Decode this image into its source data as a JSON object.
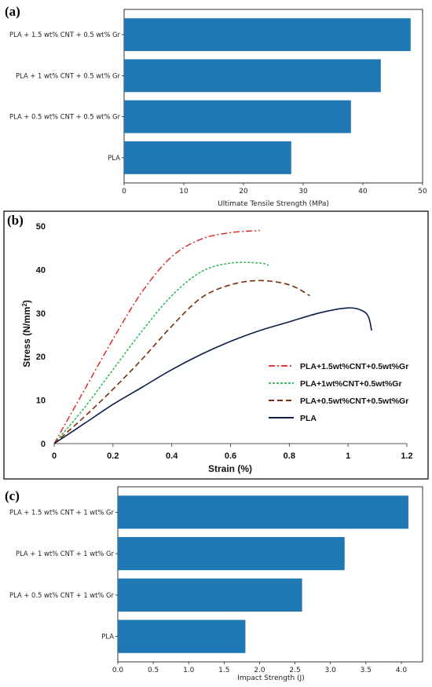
{
  "panels": {
    "a": "(a)",
    "b": "(b)",
    "c": "(c)"
  },
  "colors": {
    "bar": "#1f77b4",
    "pla15": "#e02020",
    "pla1": "#22b14c",
    "pla05": "#7a2d0c",
    "pla": "#0b1e4a"
  },
  "chart_data": [
    {
      "type": "bar",
      "orientation": "horizontal",
      "categories": [
        "PLA + 1.5 wt% CNT + 0.5 wt% Gr",
        "PLA + 1 wt% CNT + 0.5 wt% Gr",
        "PLA + 0.5 wt% CNT + 0.5 wt% Gr",
        "PLA"
      ],
      "values": [
        48,
        43,
        38,
        28
      ],
      "xlabel": "Ultimate Tensile Strength (MPa)",
      "xlim": [
        0,
        50
      ],
      "xticks": [
        "0",
        "10",
        "20",
        "30",
        "40",
        "50"
      ]
    },
    {
      "type": "line",
      "xlabel": "Strain (%)",
      "ylabel": "Stress (N/mm²)",
      "xlim": [
        0,
        1.2
      ],
      "ylim": [
        0,
        50
      ],
      "xticks": [
        "0",
        "0.2",
        "0.4",
        "0.6",
        "0.8",
        "1",
        "1.2"
      ],
      "yticks": [
        "0",
        "10",
        "20",
        "30",
        "40",
        "50"
      ],
      "legend_position": "lower-right",
      "series": [
        {
          "name": "PLA+1.5wt%CNT+0.5wt%Gr",
          "style": "dashdot",
          "x": [
            0,
            0.1,
            0.2,
            0.3,
            0.4,
            0.5,
            0.6,
            0.7
          ],
          "y": [
            0,
            12,
            24,
            35,
            43,
            47,
            48.5,
            49
          ]
        },
        {
          "name": "PLA+1wt%CNT+0.5wt%Gr",
          "style": "dotted",
          "x": [
            0,
            0.1,
            0.2,
            0.3,
            0.4,
            0.5,
            0.6,
            0.7,
            0.73
          ],
          "y": [
            0,
            8,
            17,
            26,
            34,
            39.5,
            41.5,
            41.5,
            41
          ]
        },
        {
          "name": "PLA+0.5wt%CNT+0.5wt%Gr",
          "style": "dashed",
          "x": [
            0,
            0.1,
            0.2,
            0.3,
            0.4,
            0.5,
            0.6,
            0.7,
            0.8,
            0.87
          ],
          "y": [
            0,
            6,
            12.5,
            19.5,
            27,
            33.5,
            36.5,
            37.5,
            36.5,
            34
          ]
        },
        {
          "name": "PLA",
          "style": "solid",
          "x": [
            0,
            0.1,
            0.2,
            0.3,
            0.4,
            0.5,
            0.6,
            0.7,
            0.8,
            0.9,
            1.0,
            1.05,
            1.07,
            1.08
          ],
          "y": [
            0,
            4.5,
            9,
            13,
            17,
            20.5,
            23.5,
            26,
            28,
            30,
            31.2,
            30.5,
            29,
            26
          ]
        }
      ]
    },
    {
      "type": "bar",
      "orientation": "horizontal",
      "categories": [
        "PLA + 1.5 wt% CNT + 1 wt% Gr",
        "PLA + 1 wt% CNT + 1 wt% Gr",
        "PLA + 0.5 wt% CNT + 1 wt% Gr",
        "PLA"
      ],
      "values": [
        4.1,
        3.2,
        2.6,
        1.8
      ],
      "xlabel": "Impact Strength (J)",
      "xlim": [
        0,
        4.3
      ],
      "xticks": [
        "0.0",
        "0.5",
        "1.0",
        "1.5",
        "2.0",
        "2.5",
        "3.0",
        "3.5",
        "4.0"
      ]
    }
  ]
}
